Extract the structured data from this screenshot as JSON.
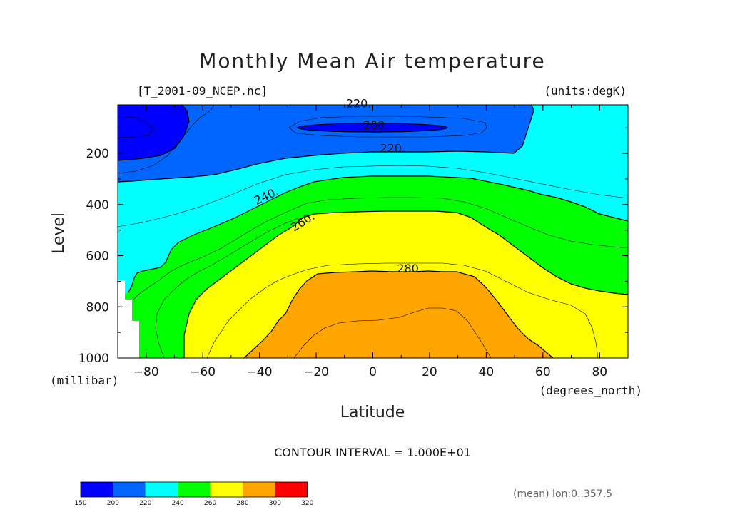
{
  "chart_data": {
    "type": "heatmap",
    "title": "Monthly Mean Air temperature",
    "source_file": "[T_2001-09_NCEP.nc]",
    "units": "(units:degK)",
    "xlabel": "Latitude",
    "ylabel": "Level",
    "x_unit": "(degrees_north)",
    "y_unit": "(millibar)",
    "xlim": [
      -90,
      90
    ],
    "ylim": [
      1000,
      10
    ],
    "x_ticks": [
      -80,
      -60,
      -40,
      -20,
      0,
      20,
      40,
      60,
      80
    ],
    "x_tick_labels": [
      "−80",
      "−60",
      "−40",
      "−20",
      "0",
      "20",
      "40",
      "60",
      "80"
    ],
    "y_ticks": [
      200,
      400,
      600,
      800,
      1000
    ],
    "y_tick_labels": [
      "200",
      "400",
      "600",
      "800",
      "1000"
    ],
    "contour_labels": [
      {
        "text": "220.",
        "lat": -5,
        "level": 20,
        "angle": 0
      },
      {
        "text": "200.",
        "lat": 1,
        "level": 105,
        "angle": 0
      },
      {
        "text": "220.",
        "lat": 7,
        "level": 195,
        "angle": 0
      },
      {
        "text": "240.",
        "lat": -37,
        "level": 380,
        "angle": -25
      },
      {
        "text": "260.",
        "lat": -24,
        "level": 480,
        "angle": -32
      },
      {
        "text": "280.",
        "lat": 13,
        "level": 665,
        "angle": 0
      }
    ],
    "contour_interval": "CONTOUR INTERVAL = 1.000E+01",
    "colorbar": {
      "levels": [
        150,
        200,
        220,
        240,
        260,
        280,
        300,
        320
      ],
      "labels": [
        "150",
        "200",
        "220",
        "240",
        "260",
        "280",
        "300",
        "320"
      ],
      "colors": [
        "#0000ff",
        "#0066ff",
        "#00ffff",
        "#00ff00",
        "#ffff00",
        "#ffa500",
        "#ff0000"
      ]
    },
    "note": "(mean) lon:0..357.5",
    "colors": {
      "lt200": "#0000ff",
      "b200_220": "#0066ff",
      "b220_240": "#00ffff",
      "b240_260": "#00ff00",
      "b260_280": "#ffff00",
      "b280_300": "#ffa500",
      "missing": "#ffffff"
    }
  }
}
